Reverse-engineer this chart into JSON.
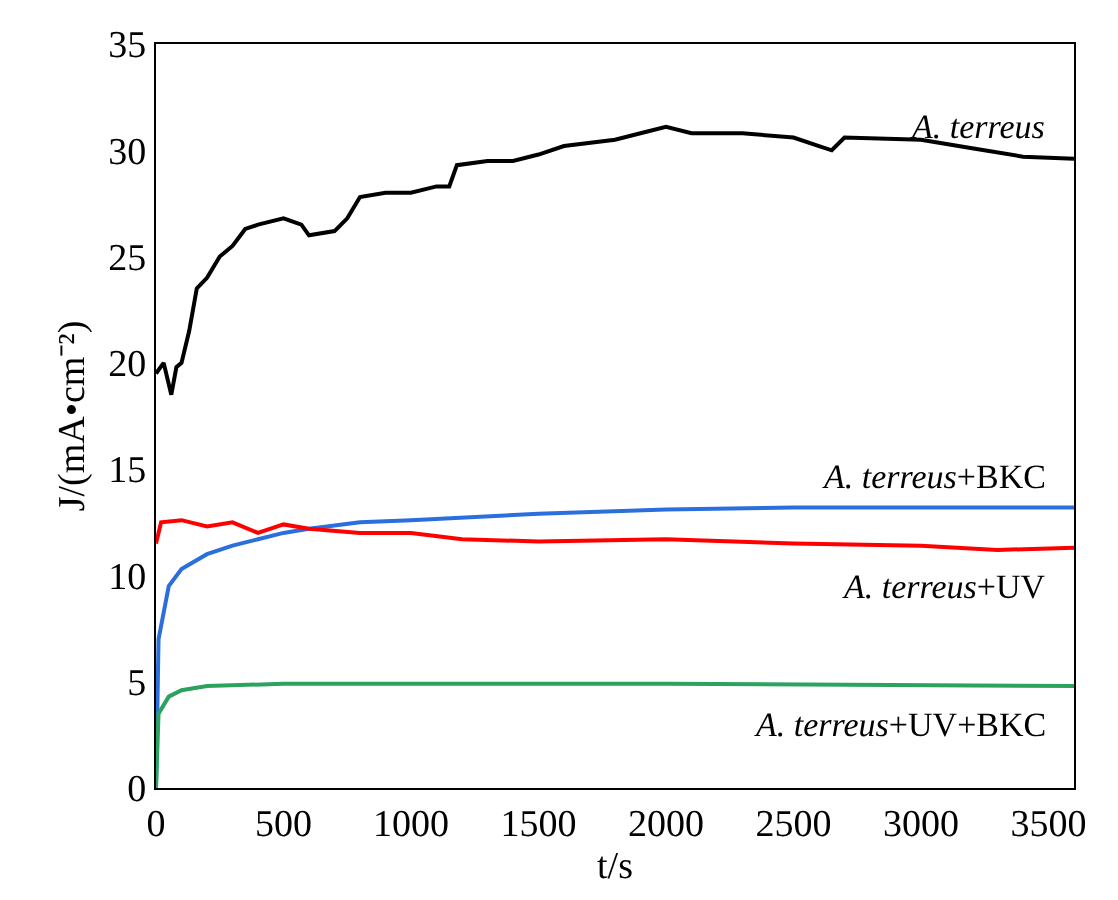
{
  "chart_data": {
    "type": "line",
    "xlabel": "t/s",
    "ylabel": "J/(mA•cm⁻²)",
    "xlim": [
      0,
      3600
    ],
    "ylim": [
      0,
      35
    ],
    "xticks": [
      0,
      500,
      1000,
      1500,
      2000,
      2500,
      3000,
      3500
    ],
    "yticks": [
      0,
      5,
      10,
      15,
      20,
      25,
      30,
      35
    ],
    "legend": false,
    "marker": "none",
    "line_style": "solid",
    "series": [
      {
        "name": "A. terreus",
        "color": "#000000",
        "x": [
          0,
          30,
          60,
          80,
          100,
          130,
          160,
          200,
          250,
          300,
          350,
          400,
          500,
          570,
          600,
          700,
          750,
          800,
          900,
          1000,
          1100,
          1150,
          1180,
          1300,
          1400,
          1500,
          1600,
          1800,
          1900,
          2000,
          2100,
          2300,
          2500,
          2600,
          2650,
          2700,
          3000,
          3200,
          3400,
          3600
        ],
        "values": [
          19.5,
          20,
          18.5,
          19.8,
          20,
          21.5,
          23.5,
          24,
          25,
          25.5,
          26.3,
          26.5,
          26.8,
          26.5,
          26,
          26.2,
          26.8,
          27.8,
          28,
          28,
          28.3,
          28.3,
          29.3,
          29.5,
          29.5,
          29.8,
          30.2,
          30.5,
          30.8,
          31.1,
          30.8,
          30.8,
          30.6,
          30.2,
          30,
          30.6,
          30.5,
          30.1,
          29.7,
          29.6
        ]
      },
      {
        "name": "A. terreus+BKC",
        "color": "#2a6fdb",
        "x": [
          0,
          10,
          50,
          100,
          200,
          300,
          400,
          500,
          600,
          800,
          1000,
          1500,
          2000,
          2500,
          3000,
          3600
        ],
        "values": [
          0,
          7,
          9.5,
          10.3,
          11,
          11.4,
          11.7,
          12,
          12.2,
          12.5,
          12.6,
          12.9,
          13.1,
          13.2,
          13.2,
          13.2
        ]
      },
      {
        "name": "A. terreus+UV",
        "color": "#ff0000",
        "x": [
          0,
          20,
          100,
          200,
          300,
          400,
          500,
          600,
          800,
          1000,
          1200,
          1500,
          2000,
          2500,
          3000,
          3300,
          3600
        ],
        "values": [
          11.5,
          12.5,
          12.6,
          12.3,
          12.5,
          12,
          12.4,
          12.2,
          12,
          12,
          11.7,
          11.6,
          11.7,
          11.5,
          11.4,
          11.2,
          11.3
        ]
      },
      {
        "name": "A. terreus+UV+BKC",
        "color": "#2ca25f",
        "x": [
          0,
          10,
          50,
          100,
          200,
          500,
          1000,
          2000,
          3600
        ],
        "values": [
          0,
          3.5,
          4.3,
          4.6,
          4.8,
          4.9,
          4.9,
          4.9,
          4.8
        ]
      }
    ]
  }
}
